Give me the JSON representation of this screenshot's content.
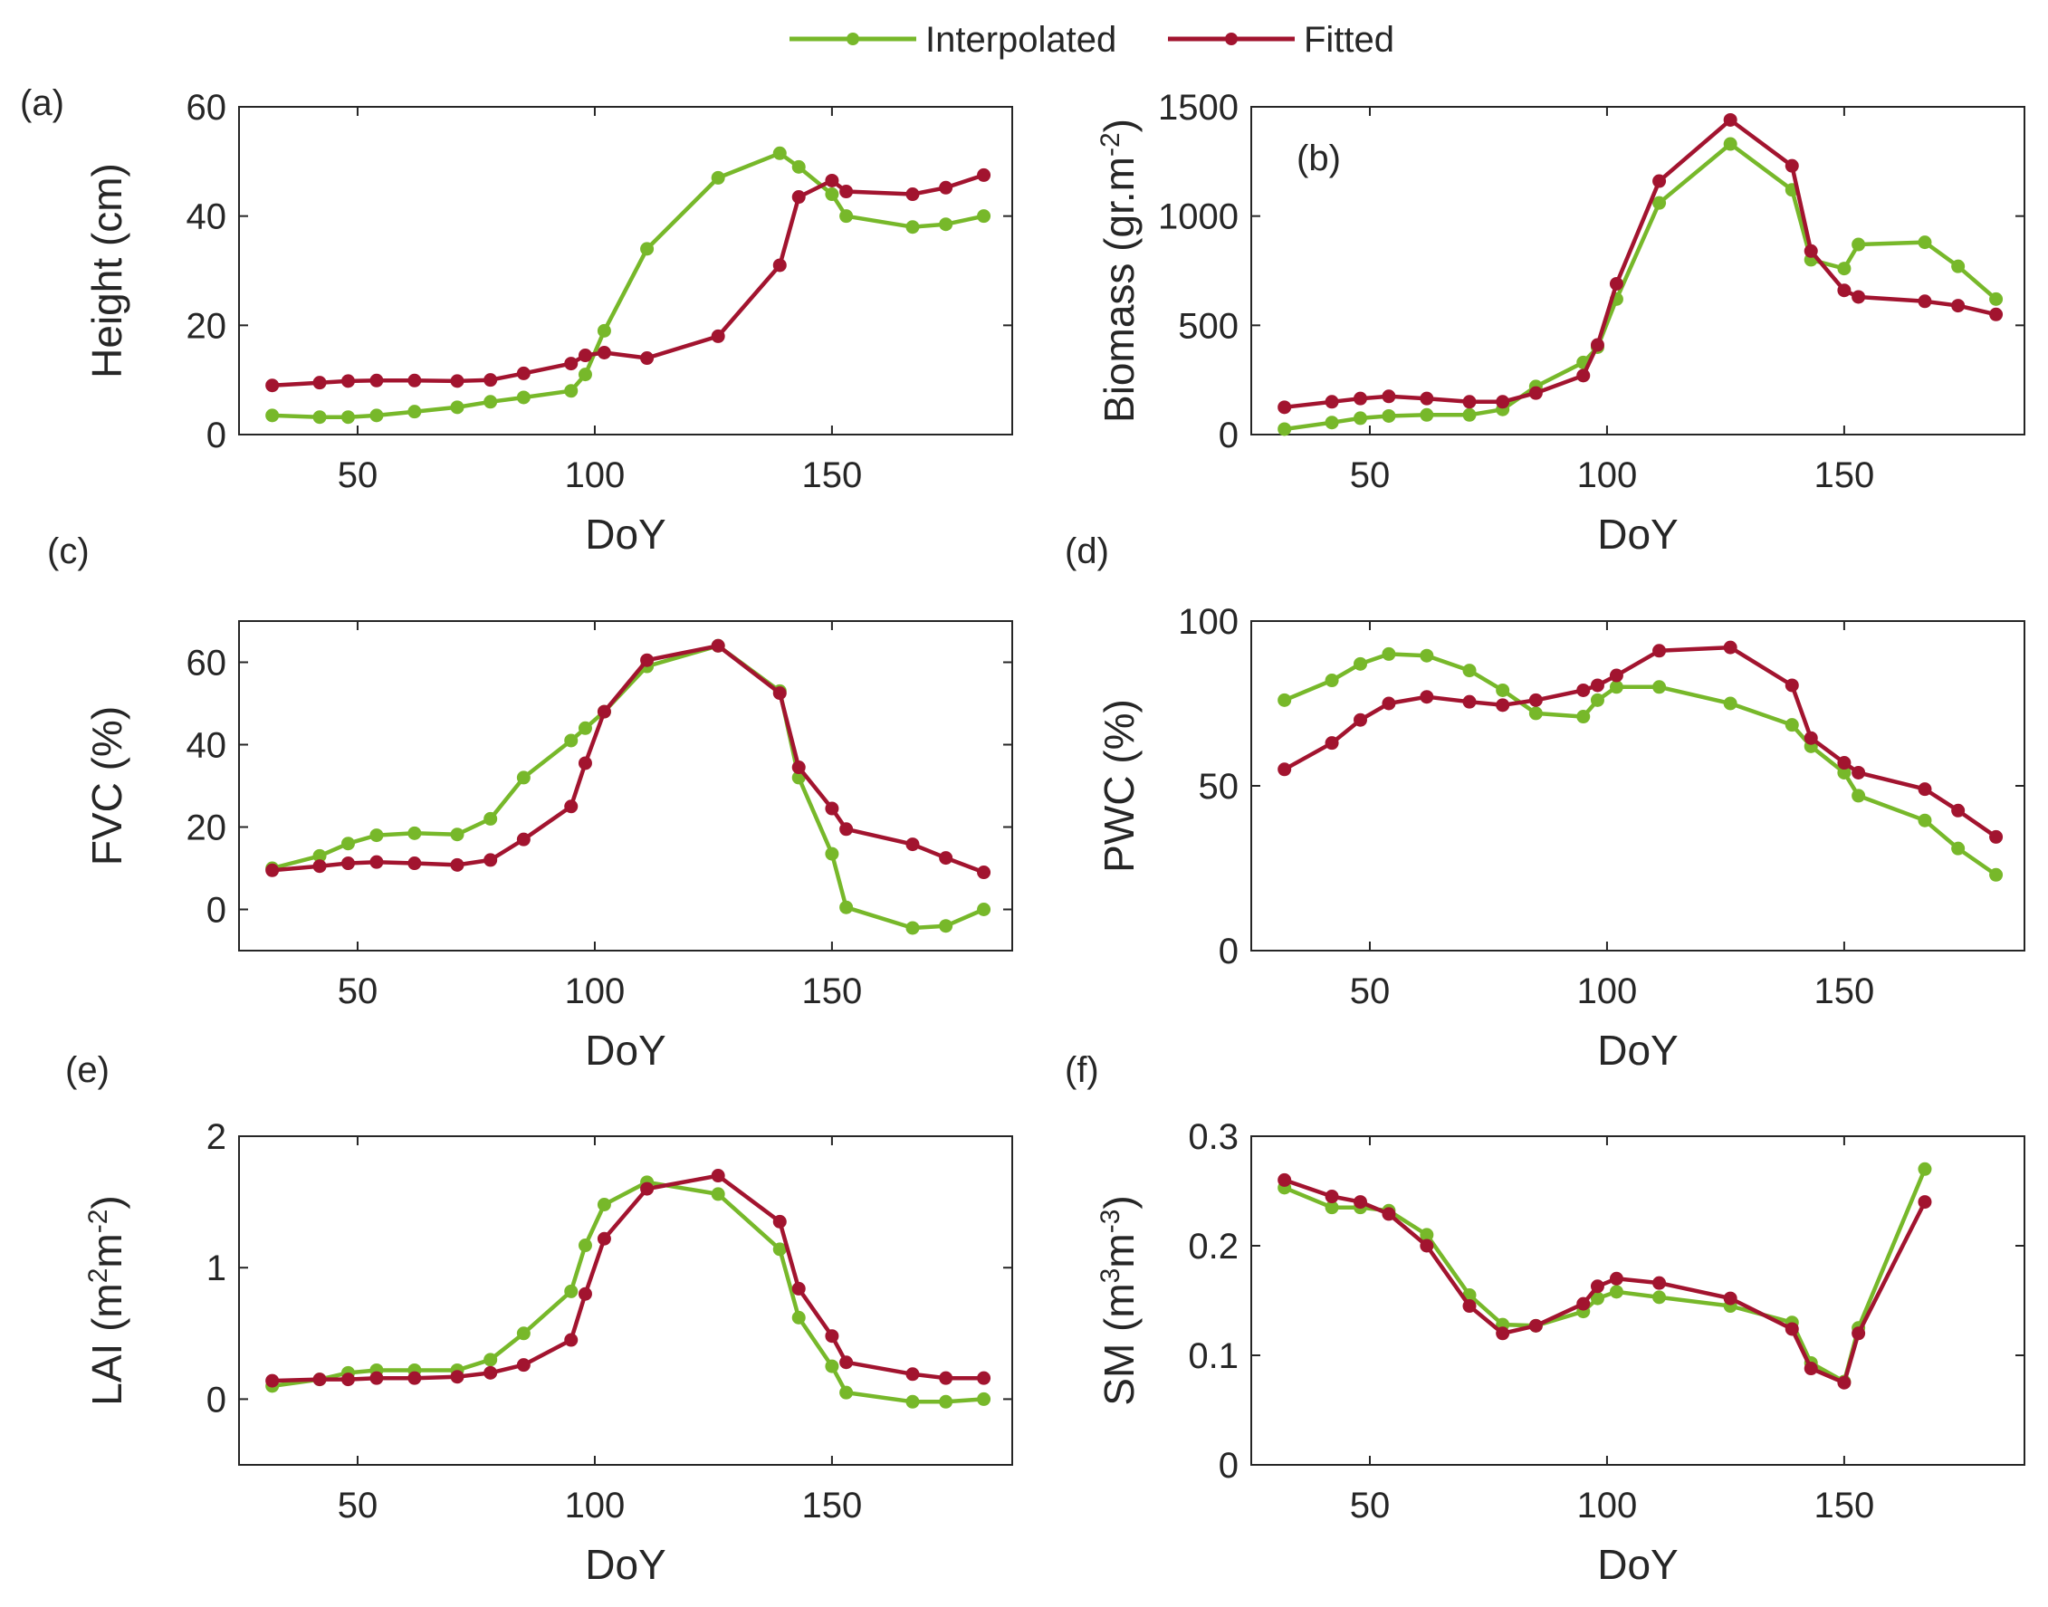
{
  "legend": {
    "entries": [
      {
        "name": "Interpolated",
        "color": "#77B82A"
      },
      {
        "name": "Fitted",
        "color": "#A2142F"
      }
    ]
  },
  "chart_data": [
    {
      "type": "line",
      "panel": "(a)",
      "xlabel": "DoY",
      "ylabel": "Height (cm)",
      "xlim": [
        25,
        188
      ],
      "ylim": [
        0,
        60
      ],
      "xticks": [
        50,
        100,
        150
      ],
      "yticks": [
        0,
        20,
        40,
        60
      ],
      "x": [
        32,
        42,
        48,
        54,
        62,
        71,
        78,
        85,
        95,
        98,
        102,
        111,
        126,
        139,
        143,
        150,
        153,
        167,
        174,
        182
      ],
      "series": [
        {
          "name": "Interpolated",
          "values": [
            3.5,
            3.2,
            3.2,
            3.5,
            4.2,
            5.0,
            6.0,
            6.8,
            8.0,
            11.0,
            19.0,
            34.0,
            47.0,
            51.5,
            49.0,
            44.0,
            40.0,
            38.0,
            38.5,
            40.0
          ]
        },
        {
          "name": "Fitted",
          "values": [
            9.0,
            9.5,
            9.8,
            9.9,
            9.9,
            9.8,
            10.0,
            11.2,
            13.0,
            14.5,
            15.0,
            14.0,
            18.0,
            31.0,
            43.5,
            46.5,
            44.5,
            44.0,
            45.2,
            47.5
          ]
        }
      ]
    },
    {
      "type": "line",
      "panel": "(b)",
      "xlabel": "DoY",
      "ylabel": "Biomass (gr.m",
      "ylabel_sup": "-2",
      "ylabel_end": ")",
      "xlim": [
        25,
        188
      ],
      "ylim": [
        0,
        1500
      ],
      "xticks": [
        50,
        100,
        150
      ],
      "yticks": [
        0,
        500,
        1000,
        1500
      ],
      "x": [
        32,
        42,
        48,
        54,
        62,
        71,
        78,
        85,
        95,
        98,
        102,
        111,
        126,
        139,
        143,
        150,
        153,
        167,
        174,
        182
      ],
      "series": [
        {
          "name": "Interpolated",
          "values": [
            25,
            55,
            75,
            85,
            90,
            90,
            115,
            220,
            330,
            400,
            620,
            1060,
            1330,
            1120,
            800,
            760,
            870,
            880,
            770,
            620
          ]
        },
        {
          "name": "Fitted",
          "values": [
            125,
            150,
            165,
            175,
            165,
            150,
            150,
            190,
            270,
            410,
            690,
            1160,
            1440,
            1230,
            840,
            660,
            630,
            610,
            590,
            550
          ]
        }
      ]
    },
    {
      "type": "line",
      "panel": "(c)",
      "xlabel": "DoY",
      "ylabel": "FVC (%)",
      "xlim": [
        25,
        188
      ],
      "ylim": [
        -10,
        70
      ],
      "xticks": [
        50,
        100,
        150
      ],
      "yticks": [
        0,
        20,
        40,
        60
      ],
      "x": [
        32,
        42,
        48,
        54,
        62,
        71,
        78,
        85,
        95,
        98,
        102,
        111,
        126,
        139,
        143,
        150,
        153,
        167,
        174,
        182
      ],
      "series": [
        {
          "name": "Interpolated",
          "values": [
            10,
            13,
            16,
            18,
            18.5,
            18.2,
            22,
            32,
            41,
            44,
            48,
            59,
            64,
            53,
            32,
            13.5,
            0.5,
            -4.5,
            -4,
            0
          ]
        },
        {
          "name": "Fitted",
          "values": [
            9.5,
            10.5,
            11.2,
            11.5,
            11.2,
            10.8,
            12,
            17,
            25,
            35.5,
            48,
            60.5,
            64,
            52.5,
            34.5,
            24.5,
            19.5,
            15.8,
            12.5,
            9
          ]
        }
      ]
    },
    {
      "type": "line",
      "panel": "(d)",
      "xlabel": "DoY",
      "ylabel": "PWC (%)",
      "xlim": [
        25,
        188
      ],
      "ylim": [
        0,
        100
      ],
      "xticks": [
        50,
        100,
        150
      ],
      "yticks": [
        0,
        50,
        100
      ],
      "x": [
        32,
        42,
        48,
        54,
        62,
        71,
        78,
        85,
        95,
        98,
        102,
        111,
        126,
        139,
        143,
        150,
        153,
        167,
        174,
        182
      ],
      "series": [
        {
          "name": "Interpolated",
          "values": [
            76,
            82,
            87,
            90,
            89.5,
            85,
            79,
            72,
            71,
            76,
            80,
            80,
            75,
            68.5,
            62,
            54,
            47,
            39.5,
            31,
            23
          ]
        },
        {
          "name": "Fitted",
          "values": [
            55,
            63,
            70,
            75,
            77,
            75.5,
            74.5,
            76,
            79,
            80.5,
            83.5,
            91,
            92,
            80.5,
            64.5,
            57,
            54,
            49,
            42.5,
            34.5
          ]
        }
      ]
    },
    {
      "type": "line",
      "panel": "(e)",
      "xlabel": "DoY",
      "ylabel": "LAI (m",
      "ylabel_sup": "2",
      "ylabel_mid": "m",
      "ylabel_sup2": "-2",
      "ylabel_end": ")",
      "xlim": [
        25,
        188
      ],
      "ylim": [
        -0.5,
        2
      ],
      "xticks": [
        50,
        100,
        150
      ],
      "yticks": [
        0,
        1,
        2
      ],
      "x": [
        32,
        42,
        48,
        54,
        62,
        71,
        78,
        85,
        95,
        98,
        102,
        111,
        126,
        139,
        143,
        150,
        153,
        167,
        174,
        182
      ],
      "series": [
        {
          "name": "Interpolated",
          "values": [
            0.1,
            0.15,
            0.2,
            0.22,
            0.22,
            0.22,
            0.3,
            0.5,
            0.82,
            1.17,
            1.48,
            1.65,
            1.56,
            1.14,
            0.62,
            0.25,
            0.05,
            -0.02,
            -0.02,
            0
          ]
        },
        {
          "name": "Fitted",
          "values": [
            0.14,
            0.15,
            0.15,
            0.16,
            0.16,
            0.17,
            0.2,
            0.26,
            0.45,
            0.8,
            1.22,
            1.6,
            1.7,
            1.35,
            0.84,
            0.48,
            0.28,
            0.19,
            0.16,
            0.16
          ]
        }
      ]
    },
    {
      "type": "line",
      "panel": "(f)",
      "xlabel": "DoY",
      "ylabel": "SM (m",
      "ylabel_sup": "3",
      "ylabel_mid": "m",
      "ylabel_sup2": "-3",
      "ylabel_end": ")",
      "xlim": [
        25,
        188
      ],
      "ylim": [
        0,
        0.3
      ],
      "xticks": [
        50,
        100,
        150
      ],
      "yticks": [
        0,
        0.1,
        0.2,
        0.3
      ],
      "x": [
        32,
        42,
        48,
        54,
        62,
        71,
        78,
        85,
        95,
        98,
        102,
        111,
        126,
        139,
        143,
        150,
        153,
        167
      ],
      "series": [
        {
          "name": "Interpolated",
          "values": [
            0.253,
            0.235,
            0.235,
            0.232,
            0.21,
            0.155,
            0.128,
            0.127,
            0.14,
            0.152,
            0.158,
            0.153,
            0.145,
            0.13,
            0.093,
            0.076,
            0.125,
            0.27
          ]
        },
        {
          "name": "Fitted",
          "values": [
            0.26,
            0.245,
            0.24,
            0.229,
            0.2,
            0.145,
            0.12,
            0.127,
            0.147,
            0.163,
            0.17,
            0.166,
            0.152,
            0.124,
            0.088,
            0.075,
            0.12,
            0.24
          ]
        }
      ]
    }
  ]
}
